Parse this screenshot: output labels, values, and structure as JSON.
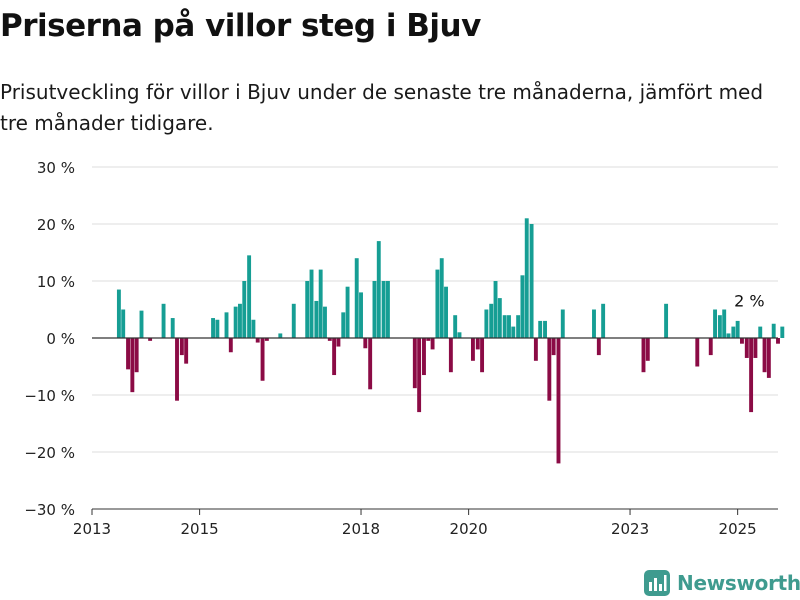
{
  "header": {
    "title": "Priserna på villor steg i Bjuv",
    "subtitle": "Prisutveckling för villor i Bjuv under de senaste tre månaderna, jämfört med tre månader tidigare."
  },
  "brand": {
    "name": "Newsworthy",
    "icon": "newsworthy-logo-icon"
  },
  "colors": {
    "positive": "#169e94",
    "negative": "#8b0b45",
    "grid": "#dedede",
    "axis": "#333333"
  },
  "chart_data": {
    "type": "bar",
    "title": "Priserna på villor steg i Bjuv",
    "subtitle": "Prisutveckling för villor i Bjuv under de senaste tre månaderna, jämfört med tre månader tidigare.",
    "xlabel": "",
    "ylabel": "",
    "unit": "%",
    "ylim": [
      -30,
      30
    ],
    "yticks": [
      30,
      20,
      10,
      0,
      -10,
      -20,
      -30
    ],
    "ytick_labels": [
      "30 %",
      "20 %",
      "10 %",
      "0 %",
      "−10 %",
      "−20 %",
      "−30 %"
    ],
    "xlim": [
      2013.0,
      2025.75
    ],
    "xticks": [
      2013,
      2015,
      2018,
      2020,
      2023,
      2025
    ],
    "xtick_labels": [
      "2013",
      "2015",
      "2018",
      "2020",
      "2023",
      "2025"
    ],
    "grid": true,
    "annotation": {
      "text": "2 %",
      "x": 2025.33,
      "value": 2
    },
    "series": [
      {
        "x": [
          2013.5,
          2013.58,
          2013.67,
          2013.75,
          2013.83,
          2013.92,
          2014.08,
          2014.33,
          2014.5,
          2014.58,
          2014.67,
          2014.75,
          2015.25,
          2015.33,
          2015.5,
          2015.58,
          2015.67,
          2015.75,
          2015.83,
          2015.92,
          2016.0,
          2016.08,
          2016.17,
          2016.25,
          2016.5,
          2016.75,
          2017.0,
          2017.08,
          2017.17,
          2017.25,
          2017.33,
          2017.42,
          2017.5,
          2017.58,
          2017.67,
          2017.75,
          2017.92,
          2018.0,
          2018.08,
          2018.17,
          2018.25,
          2018.33,
          2018.42,
          2018.5,
          2019.0,
          2019.08,
          2019.17,
          2019.25,
          2019.33,
          2019.42,
          2019.5,
          2019.58,
          2019.67,
          2019.75,
          2019.83,
          2020.08,
          2020.17,
          2020.25,
          2020.33,
          2020.42,
          2020.5,
          2020.58,
          2020.67,
          2020.75,
          2020.83,
          2020.92,
          2021.0,
          2021.08,
          2021.17,
          2021.25,
          2021.33,
          2021.42,
          2021.5,
          2021.58,
          2021.67,
          2021.75,
          2022.33,
          2022.42,
          2022.5,
          2023.25,
          2023.33,
          2023.67,
          2024.25,
          2024.5,
          2024.58,
          2024.67,
          2024.75,
          2024.83,
          2024.92,
          2025.0,
          2025.08,
          2025.17,
          2025.25,
          2025.33,
          2025.42,
          2025.5,
          2025.58,
          2025.67,
          2025.75,
          2025.83
        ],
        "values": [
          8.5,
          5.0,
          -5.5,
          -9.5,
          -6.0,
          4.8,
          -0.5,
          6.0,
          3.5,
          -11.0,
          -3.0,
          -4.5,
          3.5,
          3.2,
          4.5,
          -2.5,
          5.5,
          6.0,
          10.0,
          14.5,
          3.2,
          -0.8,
          -7.5,
          -0.5,
          0.8,
          6.0,
          10.0,
          12.0,
          6.5,
          12.0,
          5.5,
          -0.5,
          -6.5,
          -1.5,
          4.5,
          9.0,
          14.0,
          8.0,
          -1.8,
          -9.0,
          10.0,
          17.0,
          10.0,
          10.0,
          -8.8,
          -13.0,
          -6.5,
          -0.5,
          -2.0,
          12.0,
          14.0,
          9.0,
          -6.0,
          4.0,
          1.0,
          -4.0,
          -2.0,
          -6.0,
          5.0,
          6.0,
          10.0,
          7.0,
          4.0,
          4.0,
          2.0,
          4.0,
          11.0,
          21.0,
          20.0,
          -4.0,
          3.0,
          3.0,
          -11.0,
          -3.0,
          -22.0,
          5.0,
          5.0,
          -3.0,
          6.0,
          -6.0,
          -4.0,
          6.0,
          -5.0,
          -3.0,
          5.0,
          4.0,
          5.0,
          0.8,
          2.0,
          3.0,
          -1.0,
          -3.5,
          -13.0,
          -3.5,
          2.0,
          -6.0,
          -7.0,
          2.5,
          -1.0,
          2.0
        ]
      }
    ]
  }
}
